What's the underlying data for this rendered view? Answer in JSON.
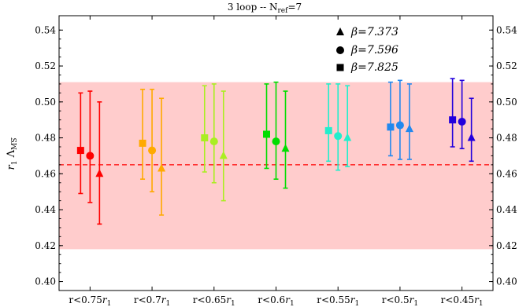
{
  "chart_data": {
    "type": "scatter",
    "title": "3 loop -- N",
    "title_sub": "ref",
    "title_tail": "=7",
    "ylabel": {
      "base": "r",
      "sub1": "1",
      "mid": " Λ",
      "sub2": "MS"
    },
    "ylim": [
      0.395,
      0.548
    ],
    "yticks": [
      0.4,
      0.42,
      0.44,
      0.46,
      0.48,
      0.5,
      0.52,
      0.54
    ],
    "ytick_labels": [
      "0.40",
      "0.42",
      "0.44",
      "0.46",
      "0.48",
      "0.50",
      "0.52",
      "0.54"
    ],
    "grid": false,
    "legend_position": "top-center",
    "categories": [
      {
        "pre": "r<0.75",
        "r": "r",
        "sub": "1"
      },
      {
        "pre": "r<0.7",
        "r": "r",
        "sub": "1"
      },
      {
        "pre": "r<0.65",
        "r": "r",
        "sub": "1"
      },
      {
        "pre": "r<0.6",
        "r": "r",
        "sub": "1"
      },
      {
        "pre": "r<0.55",
        "r": "r",
        "sub": "1"
      },
      {
        "pre": "r<0.5",
        "r": "r",
        "sub": "1"
      },
      {
        "pre": "r<0.45",
        "r": "r",
        "sub": "1"
      }
    ],
    "category_colors": [
      "#ff0000",
      "#ffaa00",
      "#aaee22",
      "#00dd00",
      "#22eecc",
      "#2288ee",
      "#2200dd"
    ],
    "band": {
      "lower": 0.418,
      "upper": 0.511,
      "color": "#ffcccc"
    },
    "reference_line": {
      "value": 0.465,
      "color": "#ff0000",
      "style": "dashed"
    },
    "series": [
      {
        "name": "β=7.825",
        "marker": "square",
        "values": [
          0.473,
          0.477,
          0.48,
          0.482,
          0.484,
          0.486,
          0.49
        ],
        "err_low": [
          0.449,
          0.457,
          0.461,
          0.463,
          0.467,
          0.47,
          0.475
        ],
        "err_high": [
          0.505,
          0.507,
          0.509,
          0.51,
          0.51,
          0.511,
          0.513
        ]
      },
      {
        "name": "β=7.596",
        "marker": "circle",
        "values": [
          0.47,
          0.473,
          0.478,
          0.478,
          0.481,
          0.487,
          0.489
        ],
        "err_low": [
          0.444,
          0.45,
          0.455,
          0.457,
          0.462,
          0.468,
          0.474
        ],
        "err_high": [
          0.506,
          0.507,
          0.51,
          0.511,
          0.51,
          0.512,
          0.512
        ]
      },
      {
        "name": "β=7.373",
        "marker": "triangle",
        "values": [
          0.46,
          0.463,
          0.47,
          0.474,
          0.48,
          0.485,
          0.48
        ],
        "err_low": [
          0.432,
          0.437,
          0.445,
          0.452,
          0.464,
          0.468,
          0.467
        ],
        "err_high": [
          0.5,
          0.502,
          0.506,
          0.506,
          0.509,
          0.51,
          0.502
        ]
      }
    ],
    "legend_order": [
      "β=7.373",
      "β=7.596",
      "β=7.825"
    ]
  }
}
